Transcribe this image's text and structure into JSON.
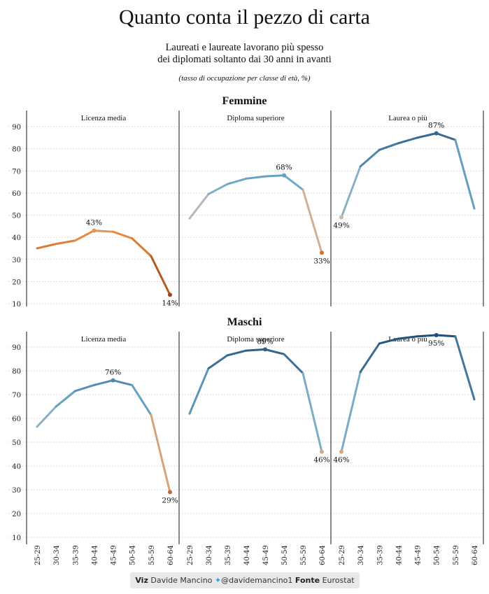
{
  "title": "Quanto conta il pezzo di carta",
  "subtitle_line1": "Laureati e laureate lavorano più spesso",
  "subtitle_line2": "dei diplomati soltanto dai 30 anni in avanti",
  "note": "(tasso di occupazione per classe di età, %)",
  "footer": {
    "viz_label": "Viz",
    "author": "Davide Mancino",
    "twitter_icon": "twitter-bird-icon",
    "handle": "@davidemancino1",
    "source_label": "Fonte",
    "source": "Eurostat"
  },
  "colors": {
    "low": "#8b3a12",
    "mid_low": "#e8853a",
    "neutral": "#c8bfb6",
    "mid_high": "#6ea9c8",
    "high": "#1f4e79"
  },
  "chart_data": {
    "type": "line",
    "x": [
      "25-29",
      "30-34",
      "35-39",
      "40-44",
      "45-49",
      "50-54",
      "55-59",
      "60-64"
    ],
    "y_ticks": [
      10,
      20,
      30,
      40,
      50,
      60,
      70,
      80,
      90
    ],
    "ylim": [
      8,
      98
    ],
    "panels": [
      {
        "row": "Femmine",
        "col": "Licenza media",
        "values": [
          35,
          37,
          38.5,
          43,
          42.5,
          39.5,
          31.5,
          14
        ],
        "labels": [
          {
            "index": 3,
            "text": "43%",
            "pos": "above"
          },
          {
            "index": 7,
            "text": "14%",
            "pos": "below"
          }
        ]
      },
      {
        "row": "Femmine",
        "col": "Diploma superiore",
        "values": [
          48.5,
          59.5,
          64,
          66.5,
          67.5,
          68,
          61.5,
          33
        ],
        "labels": [
          {
            "index": 5,
            "text": "68%",
            "pos": "above"
          },
          {
            "index": 7,
            "text": "33%",
            "pos": "below"
          }
        ]
      },
      {
        "row": "Femmine",
        "col": "Laurea o più",
        "values": [
          49,
          72,
          79.5,
          82.5,
          85,
          87,
          84,
          53
        ],
        "labels": [
          {
            "index": 0,
            "text": "49%",
            "pos": "below"
          },
          {
            "index": 5,
            "text": "87%",
            "pos": "above"
          }
        ]
      },
      {
        "row": "Maschi",
        "col": "Licenza media",
        "values": [
          56.5,
          65,
          71.5,
          74,
          76,
          74,
          61.5,
          29
        ],
        "labels": [
          {
            "index": 4,
            "text": "76%",
            "pos": "above"
          },
          {
            "index": 7,
            "text": "29%",
            "pos": "below"
          }
        ]
      },
      {
        "row": "Maschi",
        "col": "Diploma superiore",
        "values": [
          62,
          81,
          86.5,
          88.5,
          89,
          87,
          79,
          46
        ],
        "labels": [
          {
            "index": 4,
            "text": "89%",
            "pos": "above"
          },
          {
            "index": 7,
            "text": "46%",
            "pos": "below"
          }
        ]
      },
      {
        "row": "Maschi",
        "col": "Laurea o più",
        "values": [
          46,
          79.5,
          91.5,
          93.5,
          94.5,
          95,
          94.5,
          68
        ],
        "labels": [
          {
            "index": 0,
            "text": "46%",
            "pos": "below"
          },
          {
            "index": 5,
            "text": "95%",
            "pos": "below"
          }
        ]
      }
    ],
    "rows": [
      "Femmine",
      "Maschi"
    ],
    "cols": [
      "Licenza media",
      "Diploma superiore",
      "Laurea o più"
    ]
  }
}
